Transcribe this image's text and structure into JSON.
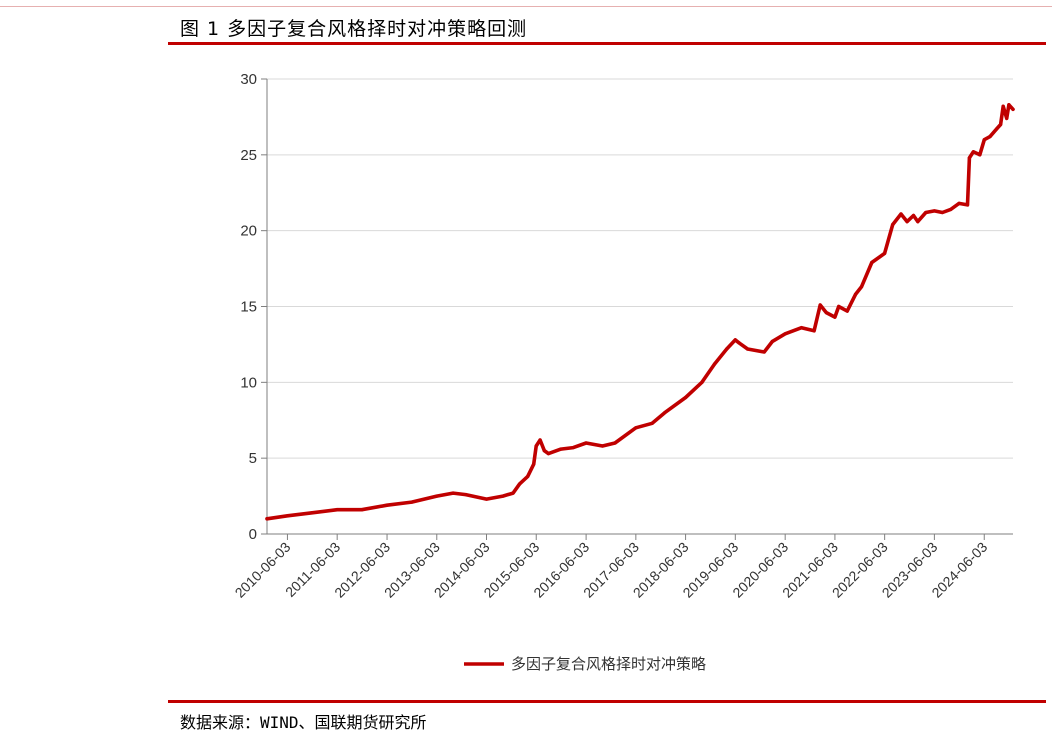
{
  "figure": {
    "title": "图 1 多因子复合风格择时对冲策略回测",
    "source": "数据来源：WIND、国联期货研究所"
  },
  "colors": {
    "accent": "#c00000",
    "series": "#c00000",
    "grid": "#d9d9d9",
    "axis": "#7f7f7f"
  },
  "chart_data": {
    "type": "line",
    "title": "",
    "xlabel": "",
    "ylabel": "",
    "ylim": [
      0,
      30
    ],
    "yticks": [
      0,
      5,
      10,
      15,
      20,
      25,
      30
    ],
    "xlim": [
      "2010-01-04",
      "2024-12-31"
    ],
    "xticks": [
      "2010-06-03",
      "2011-06-03",
      "2012-06-03",
      "2013-06-03",
      "2014-06-03",
      "2015-06-03",
      "2016-06-03",
      "2017-06-03",
      "2018-06-03",
      "2019-06-03",
      "2020-06-03",
      "2021-06-03",
      "2022-06-03",
      "2023-06-03",
      "2024-06-03"
    ],
    "grid": true,
    "legend_position": "bottom",
    "series": [
      {
        "name": "多因子复合风格择时对冲策略",
        "x": [
          "2010-01-04",
          "2010-06-03",
          "2010-12-01",
          "2011-06-03",
          "2011-12-01",
          "2012-06-03",
          "2012-12-01",
          "2013-06-03",
          "2013-10-01",
          "2014-01-01",
          "2014-06-03",
          "2014-10-01",
          "2014-12-15",
          "2015-02-01",
          "2015-04-01",
          "2015-05-15",
          "2015-06-03",
          "2015-07-01",
          "2015-08-01",
          "2015-09-01",
          "2015-12-01",
          "2016-03-01",
          "2016-06-03",
          "2016-10-01",
          "2017-01-01",
          "2017-06-03",
          "2017-10-01",
          "2018-01-01",
          "2018-06-03",
          "2018-10-01",
          "2019-01-01",
          "2019-04-01",
          "2019-06-03",
          "2019-07-01",
          "2019-09-01",
          "2020-01-01",
          "2020-03-01",
          "2020-06-03",
          "2020-10-01",
          "2021-01-01",
          "2021-02-15",
          "2021-04-01",
          "2021-06-03",
          "2021-07-01",
          "2021-09-01",
          "2021-11-01",
          "2021-12-15",
          "2022-03-01",
          "2022-06-03",
          "2022-08-01",
          "2022-10-01",
          "2022-11-15",
          "2023-01-01",
          "2023-02-01",
          "2023-04-01",
          "2023-06-03",
          "2023-08-01",
          "2023-10-01",
          "2023-12-01",
          "2024-02-01",
          "2024-02-15",
          "2024-03-15",
          "2024-05-01",
          "2024-06-03",
          "2024-07-15",
          "2024-09-01",
          "2024-10-01",
          "2024-10-20",
          "2024-11-15",
          "2024-12-01",
          "2024-12-31"
        ],
        "y": [
          1.0,
          1.2,
          1.4,
          1.6,
          1.6,
          1.9,
          2.1,
          2.5,
          2.7,
          2.6,
          2.3,
          2.5,
          2.7,
          3.3,
          3.8,
          4.6,
          5.8,
          6.2,
          5.5,
          5.3,
          5.6,
          5.7,
          6.0,
          5.8,
          6.0,
          7.0,
          7.3,
          8.0,
          9.0,
          10.0,
          11.2,
          12.2,
          12.8,
          12.6,
          12.2,
          12.0,
          12.7,
          13.2,
          13.6,
          13.4,
          15.1,
          14.6,
          14.3,
          15.0,
          14.7,
          15.8,
          16.3,
          17.9,
          18.5,
          20.4,
          21.1,
          20.6,
          21.0,
          20.6,
          21.2,
          21.3,
          21.2,
          21.4,
          21.8,
          21.7,
          24.8,
          25.2,
          25.0,
          26.0,
          26.2,
          26.7,
          27.0,
          28.2,
          27.4,
          28.3,
          28.0
        ]
      }
    ]
  }
}
